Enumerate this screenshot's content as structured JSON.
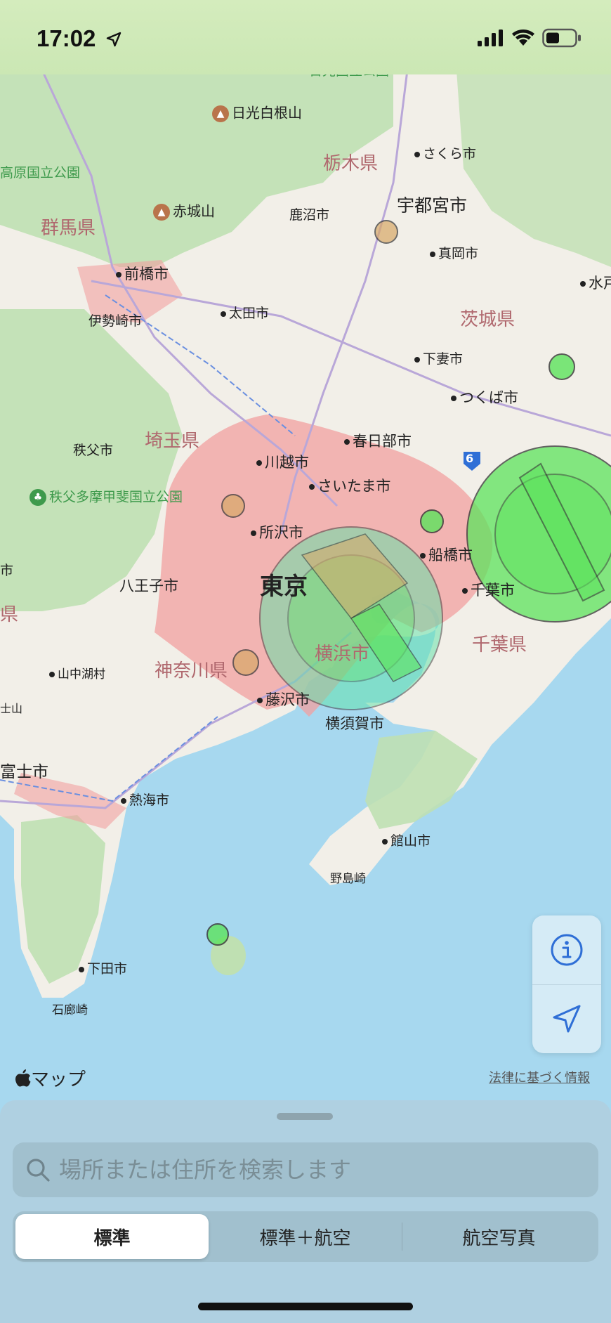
{
  "status_bar": {
    "time": "17:02"
  },
  "map": {
    "labels": {
      "nikko_park": "日光国立公園",
      "nikko_shirane": "日光白根山",
      "tochigi": "栃木県",
      "sakura": "さくら市",
      "kogen_park": "高原国立公園",
      "akagi": "赤城山",
      "kanuma": "鹿沼市",
      "utsunomiya": "宇都宮市",
      "gunma": "群馬県",
      "moka": "真岡市",
      "maebashi": "前橋市",
      "mito": "水戸",
      "isesaki": "伊勢崎市",
      "ota": "太田市",
      "ibaraki": "茨城県",
      "shimotsuma": "下妻市",
      "tsukuba": "つくば市",
      "chichibu": "秩父市",
      "saitama_pref": "埼玉県",
      "kasukabe": "春日部市",
      "kawagoe": "川越市",
      "route_6": "6",
      "saitama": "さいたま市",
      "chichibu_park": "秩父多摩甲斐国立公園",
      "tokorozawa": "所沢市",
      "funabashi": "船橋市",
      "city_left": "市",
      "hachioji": "八王子市",
      "tokyo": "東京",
      "chiba": "千葉市",
      "pref_left": "県",
      "yokohama": "横浜市",
      "chiba_pref": "千葉県",
      "yamanakako": "山中湖村",
      "kanagawa": "神奈川県",
      "fujisan": "士山",
      "fujisawa": "藤沢市",
      "yokosuka": "横須賀市",
      "fuji": "富士市",
      "atami": "熱海市",
      "tateyama": "館山市",
      "nojimazaki": "野島崎",
      "shimoda": "下田市",
      "irozaki": "石廊崎"
    }
  },
  "controls": {
    "info_icon": "info-icon",
    "location_icon": "location-arrow-icon"
  },
  "branding": {
    "maps_logo": "マップ",
    "legal_link": "法律に基づく情報"
  },
  "sheet": {
    "search_placeholder": "場所または住所を検索します",
    "segments": [
      "標準",
      "標準＋航空",
      "航空写真"
    ],
    "selected_segment": "標準"
  },
  "colors": {
    "accent": "#2f6fd6",
    "urban": "#f1a0a0",
    "land": "#f2efe8",
    "forest": "#bfe0b2",
    "water": "#a7d8ef",
    "airspace_green": "#5de35d"
  }
}
